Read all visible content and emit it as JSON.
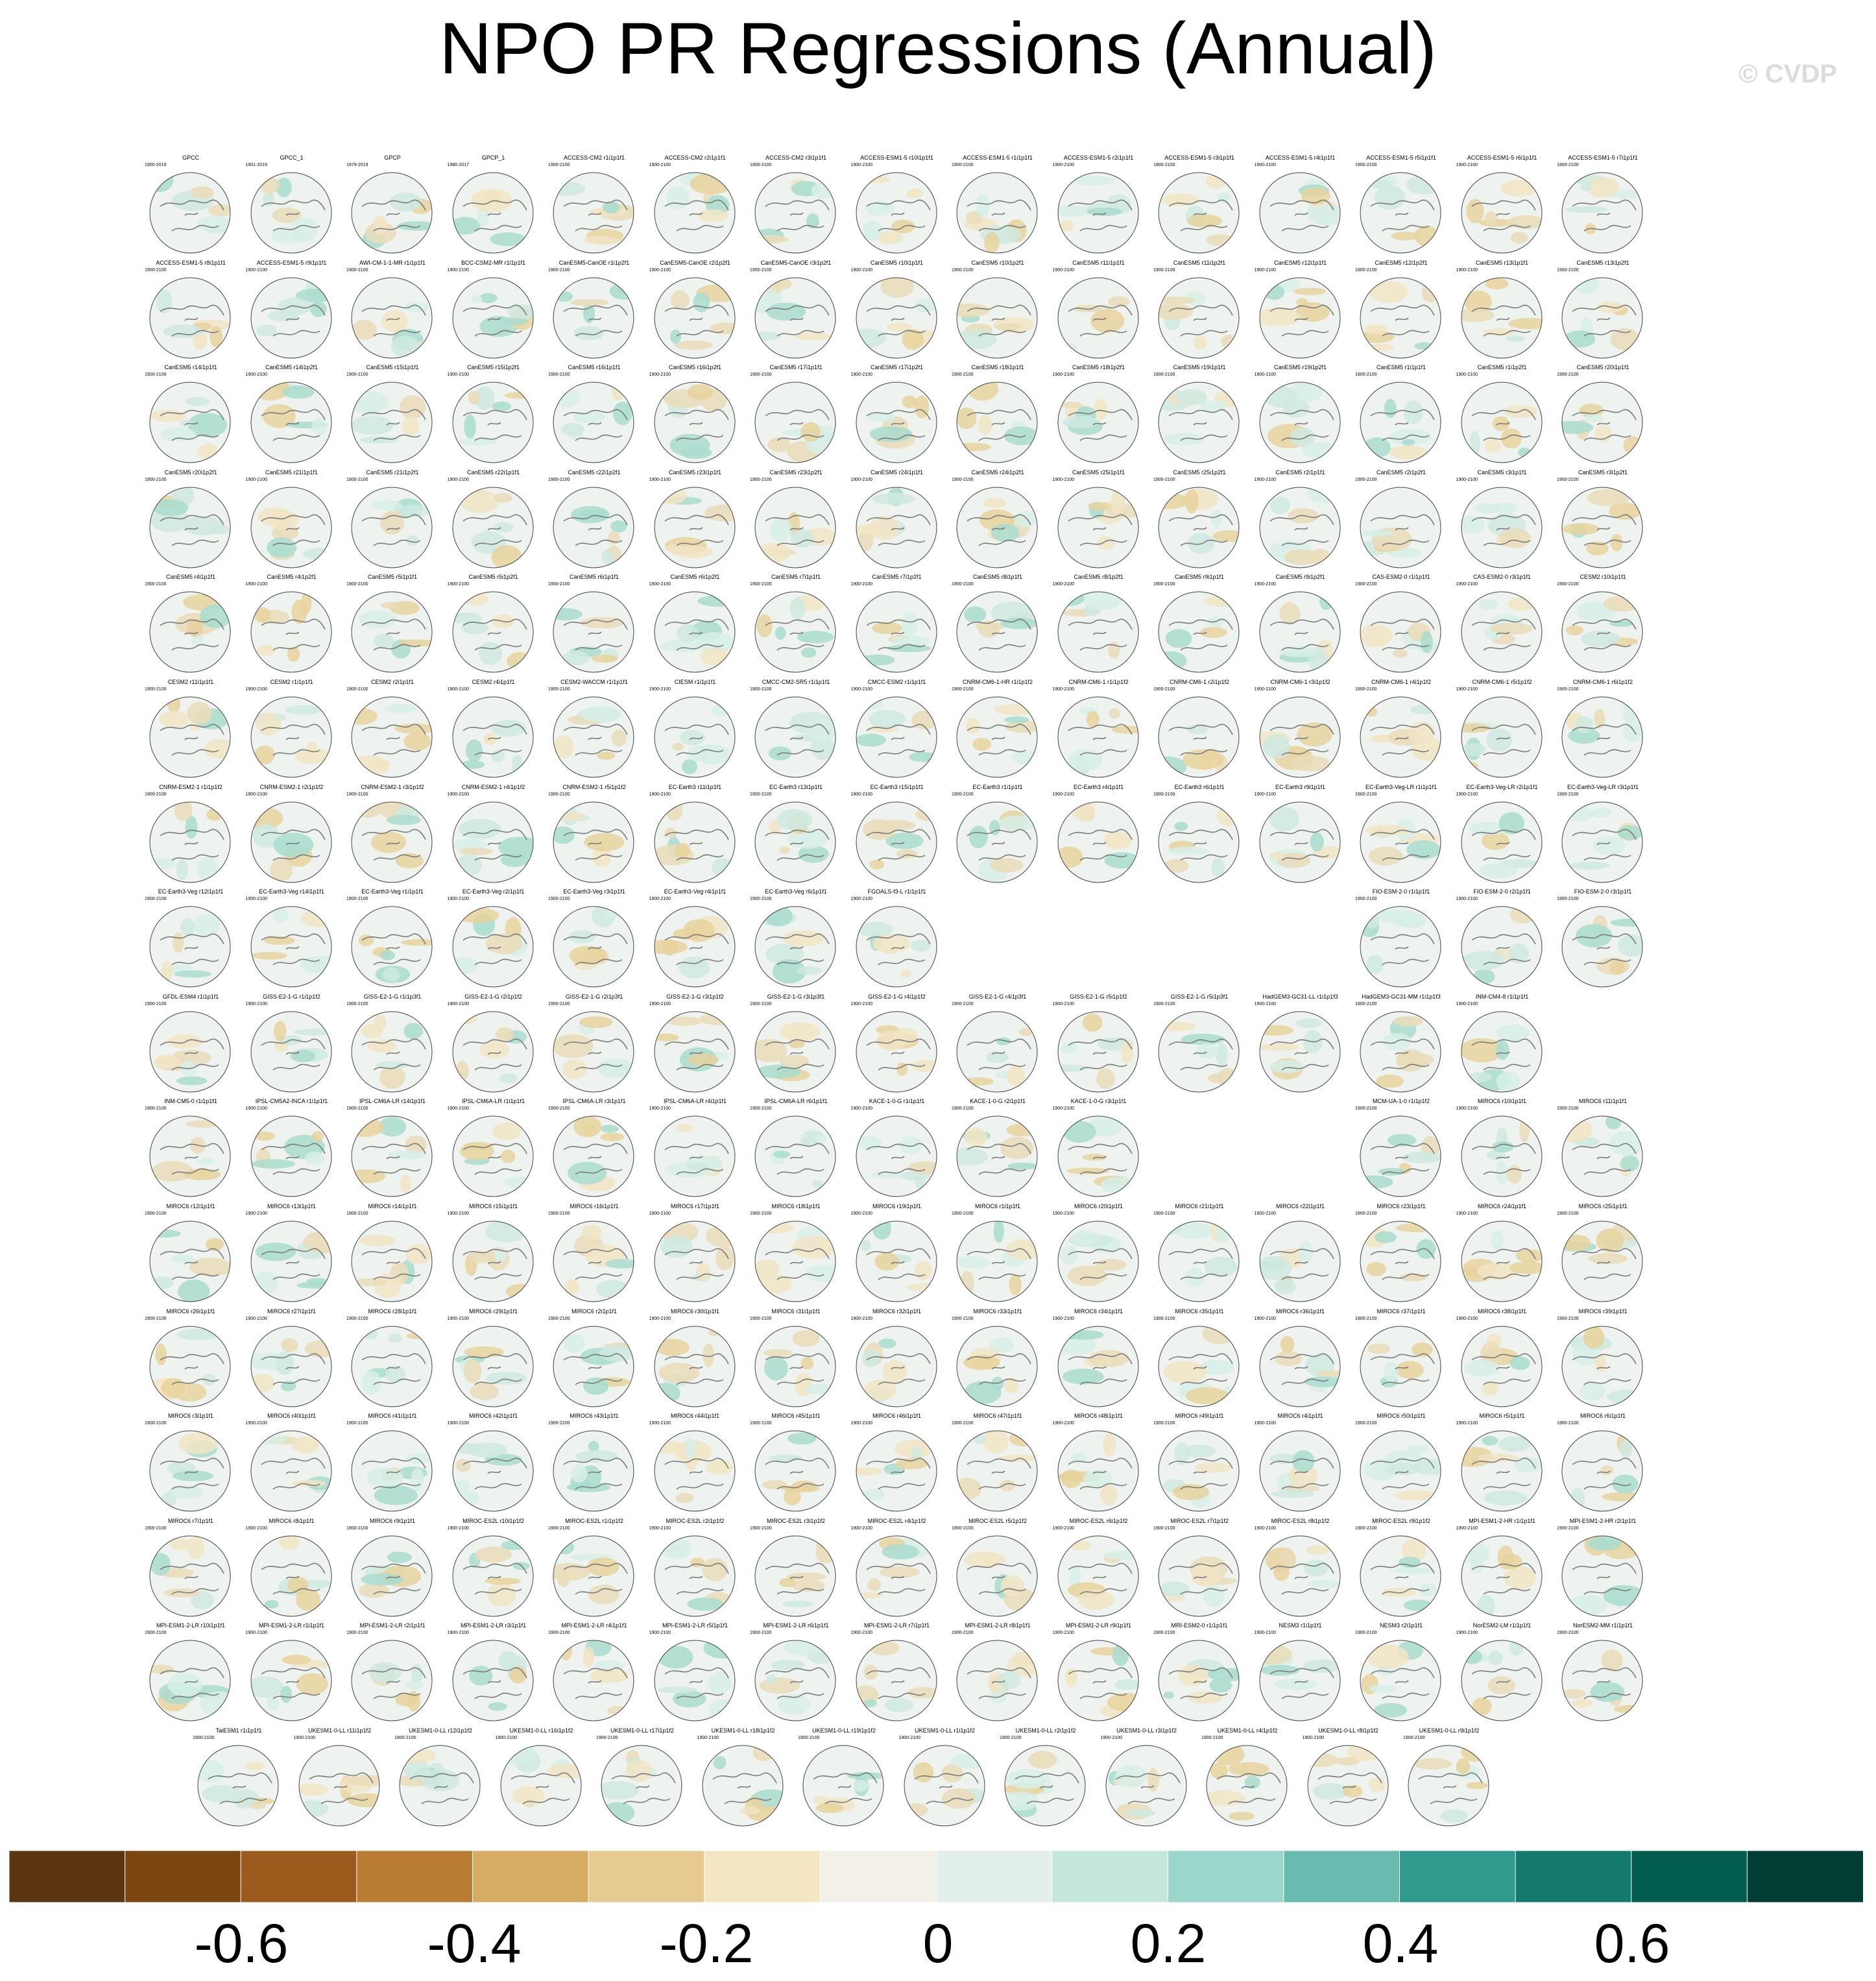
{
  "header": {
    "title": "NPO PR Regressions (Annual)",
    "copyright": "© CVDP"
  },
  "colorbar": {
    "colors": [
      "#5a3510",
      "#7c4612",
      "#9c5b1d",
      "#ba7c33",
      "#d4ac64",
      "#e6ca92",
      "#f4e6c3",
      "#f3f0e9",
      "#e2efec",
      "#c5e7de",
      "#9ad6c9",
      "#68bbae",
      "#309a8f",
      "#137a6d",
      "#035d4f",
      "#013d33"
    ],
    "labels": [
      "-0.6",
      "-0.4",
      "-0.2",
      "0",
      "0.2",
      "0.4",
      "0.6"
    ]
  },
  "panels": {
    "rows": [
      [
        [
          "GPCC",
          "1900-2019"
        ],
        [
          "GPCC_1",
          "1901-2019"
        ],
        [
          "GPCP",
          "1979-2019"
        ],
        [
          "GPCP_1",
          "1980-2017"
        ],
        [
          "ACCESS-CM2 r1i1p1f1",
          "1900-2100"
        ],
        [
          "ACCESS-CM2 r2i1p1f1",
          "1900-2100"
        ],
        [
          "ACCESS-CM2 r3i1p1f1",
          "1900-2100"
        ],
        [
          "ACCESS-ESM1-5 r10i1p1f1",
          "1900-2100"
        ],
        [
          "ACCESS-ESM1-5 r1i1p1f1",
          "1900-2100"
        ],
        [
          "ACCESS-ESM1-5 r2i1p1f1",
          "1900-2100"
        ],
        [
          "ACCESS-ESM1-5 r3i1p1f1",
          "1900-2100"
        ],
        [
          "ACCESS-ESM1-5 r4i1p1f1",
          "1900-2100"
        ],
        [
          "ACCESS-ESM1-5 r5i1p1f1",
          "1900-2100"
        ],
        [
          "ACCESS-ESM1-5 r6i1p1f1",
          "1900-2100"
        ],
        [
          "ACCESS-ESM1-5 r7i1p1f1",
          "1900-2100"
        ]
      ],
      [
        [
          "ACCESS-ESM1-5 r8i1p1f1",
          "1900-2100"
        ],
        [
          "ACCESS-ESM1-5 r9i1p1f1",
          "1900-2100"
        ],
        [
          "AWI-CM-1-1-MR r1i1p1f1",
          "1900-2100"
        ],
        [
          "BCC-CSM2-MR r1i1p1f1",
          "1900-2100"
        ],
        [
          "CanESM5-CanOE r1i1p2f1",
          "1900-2100"
        ],
        [
          "CanESM5-CanOE r2i1p2f1",
          "1900-2100"
        ],
        [
          "CanESM5-CanOE r3i1p2f1",
          "1900-2100"
        ],
        [
          "CanESM5 r10i1p1f1",
          "1900-2100"
        ],
        [
          "CanESM5 r10i1p2f1",
          "1900-2100"
        ],
        [
          "CanESM5 r11i1p1f1",
          "1900-2100"
        ],
        [
          "CanESM5 r11i1p2f1",
          "1900-2100"
        ],
        [
          "CanESM5 r12i1p1f1",
          "1900-2100"
        ],
        [
          "CanESM5 r12i1p2f1",
          "1900-2100"
        ],
        [
          "CanESM5 r13i1p1f1",
          "1900-2100"
        ],
        [
          "CanESM5 r13i1p2f1",
          "1900-2100"
        ]
      ],
      [
        [
          "CanESM5 r14i1p1f1",
          "1900-2100"
        ],
        [
          "CanESM5 r14i1p2f1",
          "1900-2100"
        ],
        [
          "CanESM5 r15i1p1f1",
          "1900-2100"
        ],
        [
          "CanESM5 r15i1p2f1",
          "1900-2100"
        ],
        [
          "CanESM5 r16i1p1f1",
          "1900-2100"
        ],
        [
          "CanESM5 r16i1p2f1",
          "1900-2100"
        ],
        [
          "CanESM5 r17i1p1f1",
          "1900-2100"
        ],
        [
          "CanESM5 r17i1p2f1",
          "1900-2100"
        ],
        [
          "CanESM5 r18i1p1f1",
          "1900-2100"
        ],
        [
          "CanESM5 r18i1p2f1",
          "1900-2100"
        ],
        [
          "CanESM5 r19i1p1f1",
          "1900-2100"
        ],
        [
          "CanESM5 r19i1p2f1",
          "1900-2100"
        ],
        [
          "CanESM5 r1i1p1f1",
          "1900-2100"
        ],
        [
          "CanESM5 r1i1p2f1",
          "1900-2100"
        ],
        [
          "CanESM5 r20i1p1f1",
          "1900-2100"
        ]
      ],
      [
        [
          "CanESM5 r20i1p2f1",
          "1900-2100"
        ],
        [
          "CanESM5 r21i1p1f1",
          "1900-2100"
        ],
        [
          "CanESM5 r21i1p2f1",
          "1900-2100"
        ],
        [
          "CanESM5 r22i1p1f1",
          "1900-2100"
        ],
        [
          "CanESM5 r22i1p2f1",
          "1900-2100"
        ],
        [
          "CanESM5 r23i1p1f1",
          "1900-2100"
        ],
        [
          "CanESM5 r23i1p2f1",
          "1900-2100"
        ],
        [
          "CanESM5 r24i1p1f1",
          "1900-2100"
        ],
        [
          "CanESM5 r24i1p2f1",
          "1900-2100"
        ],
        [
          "CanESM5 r25i1p1f1",
          "1900-2100"
        ],
        [
          "CanESM5 r25i1p2f1",
          "1900-2100"
        ],
        [
          "CanESM5 r2i1p1f1",
          "1900-2100"
        ],
        [
          "CanESM5 r2i1p2f1",
          "1900-2100"
        ],
        [
          "CanESM5 r3i1p1f1",
          "1900-2100"
        ],
        [
          "CanESM5 r3i1p2f1",
          "1900-2100"
        ]
      ],
      [
        [
          "CanESM5 r4i1p1f1",
          "1900-2100"
        ],
        [
          "CanESM5 r4i1p2f1",
          "1900-2100"
        ],
        [
          "CanESM5 r5i1p1f1",
          "1900-2100"
        ],
        [
          "CanESM5 r5i1p2f1",
          "1900-2100"
        ],
        [
          "CanESM5 r6i1p1f1",
          "1900-2100"
        ],
        [
          "CanESM5 r6i1p2f1",
          "1900-2100"
        ],
        [
          "CanESM5 r7i1p1f1",
          "1900-2100"
        ],
        [
          "CanESM5 r7i1p2f1",
          "1900-2100"
        ],
        [
          "CanESM5 r8i1p1f1",
          "1900-2100"
        ],
        [
          "CanESM5 r8i1p2f1",
          "1900-2100"
        ],
        [
          "CanESM5 r9i1p1f1",
          "1900-2100"
        ],
        [
          "CanESM5 r9i1p2f1",
          "1900-2100"
        ],
        [
          "CAS-ESM2-0 r1i1p1f1",
          "1900-2100"
        ],
        [
          "CAS-ESM2-0 r3i1p1f1",
          "1900-2100"
        ],
        [
          "CESM2 r10i1p1f1",
          "1900-2100"
        ]
      ],
      [
        [
          "CESM2 r11i1p1f1",
          "1900-2100"
        ],
        [
          "CESM2 r1i1p1f1",
          "1900-2100"
        ],
        [
          "CESM2 r2i1p1f1",
          "1900-2100"
        ],
        [
          "CESM2 r4i1p1f1",
          "1900-2100"
        ],
        [
          "CESM2-WACCM r1i1p1f1",
          "1900-2100"
        ],
        [
          "CIESM r1i1p1f1",
          "1900-2100"
        ],
        [
          "CMCC-CM2-SR5 r1i1p1f1",
          "1900-2100"
        ],
        [
          "CMCC-ESM2 r1i1p1f1",
          "1900-2100"
        ],
        [
          "CNRM-CM6-1-HR r1i1p1f2",
          "1900-2100"
        ],
        [
          "CNRM-CM6-1 r1i1p1f2",
          "1900-2100"
        ],
        [
          "CNRM-CM6-1 r2i1p1f2",
          "1900-2100"
        ],
        [
          "CNRM-CM6-1 r3i1p1f2",
          "1900-2100"
        ],
        [
          "CNRM-CM6-1 r4i1p1f2",
          "1900-2100"
        ],
        [
          "CNRM-CM6-1 r5i1p1f2",
          "1900-2100"
        ],
        [
          "CNRM-CM6-1 r6i1p1f2",
          "1900-2100"
        ]
      ],
      [
        [
          "CNRM-ESM2-1 r1i1p1f2",
          "1900-2100"
        ],
        [
          "CNRM-ESM2-1 r2i1p1f2",
          "1900-2100"
        ],
        [
          "CNRM-ESM2-1 r3i1p1f2",
          "1900-2100"
        ],
        [
          "CNRM-ESM2-1 r4i1p1f2",
          "1900-2100"
        ],
        [
          "CNRM-ESM2-1 r5i1p1f2",
          "1900-2100"
        ],
        [
          "EC-Earth3 r11i1p1f1",
          "1900-2100"
        ],
        [
          "EC-Earth3 r13i1p1f1",
          "1900-2100"
        ],
        [
          "EC-Earth3 r15i1p1f1",
          "1900-2100"
        ],
        [
          "EC-Earth3 r1i1p1f1",
          "1900-2100"
        ],
        [
          "EC-Earth3 r4i1p1f1",
          "1900-2100"
        ],
        [
          "EC-Earth3 r6i1p1f1",
          "1900-2100"
        ],
        [
          "EC-Earth3 r9i1p1f1",
          "1900-2100"
        ],
        [
          "EC-Earth3-Veg-LR r1i1p1f1",
          "1900-2100"
        ],
        [
          "EC-Earth3-Veg-LR r2i1p1f1",
          "1900-2100"
        ],
        [
          "EC-Earth3-Veg-LR r3i1p1f1",
          "1900-2100"
        ]
      ],
      [
        [
          "EC-Earth3-Veg r12i1p1f1",
          "1900-2100"
        ],
        [
          "EC-Earth3-Veg r14i1p1f1",
          "1900-2100"
        ],
        [
          "EC-Earth3-Veg r1i1p1f1",
          "1900-2100"
        ],
        [
          "EC-Earth3-Veg r2i1p1f1",
          "1900-2100"
        ],
        [
          "EC-Earth3-Veg r3i1p1f1",
          "1900-2100"
        ],
        [
          "EC-Earth3-Veg r4i1p1f1",
          "1900-2100"
        ],
        [
          "EC-Earth3-Veg r6i1p1f1",
          "1900-2100"
        ],
        [
          "FGOALS-f3-L r1i1p1f1",
          "1900-2100"
        ],
        null,
        null,
        null,
        null,
        [
          "FIO-ESM-2-0 r1i1p1f1",
          "1900-2100"
        ],
        [
          "FIO-ESM-2-0 r2i1p1f1",
          "1900-2100"
        ],
        [
          "FIO-ESM-2-0 r3i1p1f1",
          "1900-2100"
        ]
      ],
      [
        [
          "GFDL-ESM4 r1i1p1f1",
          "1900-2100"
        ],
        [
          "GISS-E2-1-G r1i1p1f2",
          "1900-2100"
        ],
        [
          "GISS-E2-1-G r1i1p3f1",
          "1900-2100"
        ],
        [
          "GISS-E2-1-G r2i1p1f2",
          "1900-2100"
        ],
        [
          "GISS-E2-1-G r2i1p3f1",
          "1900-2100"
        ],
        [
          "GISS-E2-1-G r3i1p1f2",
          "1900-2100"
        ],
        [
          "GISS-E2-1-G r3i1p3f1",
          "1900-2100"
        ],
        [
          "GISS-E2-1-G r4i1p1f2",
          "1900-2100"
        ],
        [
          "GISS-E2-1-G r4i1p3f1",
          "1900-2100"
        ],
        [
          "GISS-E2-1-G r5i1p1f2",
          "1900-2100"
        ],
        [
          "GISS-E2-1-G r5i1p3f1",
          "1900-2100"
        ],
        [
          "HadGEM3-GC31-LL r1i1p1f3",
          "1900-2100"
        ],
        [
          "HadGEM3-GC31-MM r1i1p1f3",
          "1900-2100"
        ],
        [
          "INM-CM4-8 r1i1p1f1",
          "1900-2100"
        ],
        null
      ],
      [
        [
          "INM-CM5-0 r1i1p1f1",
          "1900-2100"
        ],
        [
          "IPSL-CM5A2-INCA r1i1p1f1",
          "1900-2100"
        ],
        [
          "IPSL-CM6A-LR r14i1p1f1",
          "1900-2100"
        ],
        [
          "IPSL-CM6A-LR r1i1p1f1",
          "1900-2100"
        ],
        [
          "IPSL-CM6A-LR r3i1p1f1",
          "1900-2100"
        ],
        [
          "IPSL-CM6A-LR r4i1p1f1",
          "1900-2100"
        ],
        [
          "IPSL-CM6A-LR r6i1p1f1",
          "1900-2100"
        ],
        [
          "KACE-1-0-G r1i1p1f1",
          "1900-2100"
        ],
        [
          "KACE-1-0-G r2i1p1f1",
          "1900-2100"
        ],
        [
          "KACE-1-0-G r3i1p1f1",
          "1900-2100"
        ],
        null,
        null,
        [
          "MCM-UA-1-0 r1i1p1f2",
          "1900-2100"
        ],
        [
          "MIROC6 r10i1p1f1",
          "1900-2100"
        ],
        [
          "MIROC6 r11i1p1f1",
          "1900-2100"
        ]
      ],
      [
        [
          "MIROC6 r12i1p1f1",
          "1900-2100"
        ],
        [
          "MIROC6 r13i1p1f1",
          "1900-2100"
        ],
        [
          "MIROC6 r14i1p1f1",
          "1900-2100"
        ],
        [
          "MIROC6 r15i1p1f1",
          "1900-2100"
        ],
        [
          "MIROC6 r16i1p1f1",
          "1900-2100"
        ],
        [
          "MIROC6 r17i1p1f1",
          "1900-2100"
        ],
        [
          "MIROC6 r18i1p1f1",
          "1900-2100"
        ],
        [
          "MIROC6 r19i1p1f1",
          "1900-2100"
        ],
        [
          "MIROC6 r1i1p1f1",
          "1900-2100"
        ],
        [
          "MIROC6 r20i1p1f1",
          "1900-2100"
        ],
        [
          "MIROC6 r21i1p1f1",
          "1900-2100"
        ],
        [
          "MIROC6 r22i1p1f1",
          "1900-2100"
        ],
        [
          "MIROC6 r23i1p1f1",
          "1900-2100"
        ],
        [
          "MIROC6 r24i1p1f1",
          "1900-2100"
        ],
        [
          "MIROC6 r25i1p1f1",
          "1900-2100"
        ]
      ],
      [
        [
          "MIROC6 r26i1p1f1",
          "1900-2100"
        ],
        [
          "MIROC6 r27i1p1f1",
          "1900-2100"
        ],
        [
          "MIROC6 r28i1p1f1",
          "1900-2100"
        ],
        [
          "MIROC6 r29i1p1f1",
          "1900-2100"
        ],
        [
          "MIROC6 r2i1p1f1",
          "1900-2100"
        ],
        [
          "MIROC6 r30i1p1f1",
          "1900-2100"
        ],
        [
          "MIROC6 r31i1p1f1",
          "1900-2100"
        ],
        [
          "MIROC6 r32i1p1f1",
          "1900-2100"
        ],
        [
          "MIROC6 r33i1p1f1",
          "1900-2100"
        ],
        [
          "MIROC6 r34i1p1f1",
          "1900-2100"
        ],
        [
          "MIROC6 r35i1p1f1",
          "1900-2100"
        ],
        [
          "MIROC6 r36i1p1f1",
          "1900-2100"
        ],
        [
          "MIROC6 r37i1p1f1",
          "1900-2100"
        ],
        [
          "MIROC6 r38i1p1f1",
          "1900-2100"
        ],
        [
          "MIROC6 r39i1p1f1",
          "1900-2100"
        ]
      ],
      [
        [
          "MIROC6 r3i1p1f1",
          "1900-2100"
        ],
        [
          "MIROC6 r40i1p1f1",
          "1900-2100"
        ],
        [
          "MIROC6 r41i1p1f1",
          "1900-2100"
        ],
        [
          "MIROC6 r42i1p1f1",
          "1900-2100"
        ],
        [
          "MIROC6 r43i1p1f1",
          "1900-2100"
        ],
        [
          "MIROC6 r44i1p1f1",
          "1900-2100"
        ],
        [
          "MIROC6 r45i1p1f1",
          "1900-2100"
        ],
        [
          "MIROC6 r46i1p1f1",
          "1900-2100"
        ],
        [
          "MIROC6 r47i1p1f1",
          "1900-2100"
        ],
        [
          "MIROC6 r48i1p1f1",
          "1900-2100"
        ],
        [
          "MIROC6 r49i1p1f1",
          "1900-2100"
        ],
        [
          "MIROC6 r4i1p1f1",
          "1900-2100"
        ],
        [
          "MIROC6 r50i1p1f1",
          "1900-2100"
        ],
        [
          "MIROC6 r5i1p1f1",
          "1900-2100"
        ],
        [
          "MIROC6 r6i1p1f1",
          "1900-2100"
        ]
      ],
      [
        [
          "MIROC6 r7i1p1f1",
          "1900-2100"
        ],
        [
          "MIROC6 r8i1p1f1",
          "1900-2100"
        ],
        [
          "MIROC6 r9i1p1f1",
          "1900-2100"
        ],
        [
          "MIROC-ES2L r10i1p1f2",
          "1900-2100"
        ],
        [
          "MIROC-ES2L r1i1p1f2",
          "1900-2100"
        ],
        [
          "MIROC-ES2L r2i1p1f2",
          "1900-2100"
        ],
        [
          "MIROC-ES2L r3i1p1f2",
          "1900-2100"
        ],
        [
          "MIROC-ES2L r4i1p1f2",
          "1900-2100"
        ],
        [
          "MIROC-ES2L r5i1p1f2",
          "1900-2100"
        ],
        [
          "MIROC-ES2L r6i1p1f2",
          "1900-2100"
        ],
        [
          "MIROC-ES2L r7i1p1f2",
          "1900-2100"
        ],
        [
          "MIROC-ES2L r8i1p1f2",
          "1900-2100"
        ],
        [
          "MIROC-ES2L r9i1p1f2",
          "1900-2100"
        ],
        [
          "MPI-ESM1-2-HR r1i1p1f1",
          "1900-2100"
        ],
        [
          "MPI-ESM1-2-HR r2i1p1f1",
          "1900-2100"
        ]
      ],
      [
        [
          "MPI-ESM1-2-LR r10i1p1f1",
          "1900-2100"
        ],
        [
          "MPI-ESM1-2-LR r1i1p1f1",
          "1900-2100"
        ],
        [
          "MPI-ESM1-2-LR r2i1p1f1",
          "1900-2100"
        ],
        [
          "MPI-ESM1-2-LR r3i1p1f1",
          "1900-2100"
        ],
        [
          "MPI-ESM1-2-LR r4i1p1f1",
          "1900-2100"
        ],
        [
          "MPI-ESM1-2-LR r5i1p1f1",
          "1900-2100"
        ],
        [
          "MPI-ESM1-2-LR r6i1p1f1",
          "1900-2100"
        ],
        [
          "MPI-ESM1-2-LR r7i1p1f1",
          "1900-2100"
        ],
        [
          "MPI-ESM1-2-LR r8i1p1f1",
          "1900-2100"
        ],
        [
          "MPI-ESM1-2-LR r9i1p1f1",
          "1900-2100"
        ],
        [
          "MRI-ESM2-0 r1i1p1f1",
          "1900-2100"
        ],
        [
          "NESM3 r1i1p1f1",
          "1900-2100"
        ],
        [
          "NESM3 r2i1p1f1",
          "1900-2100"
        ],
        [
          "NorESM2-LM r1i1p1f1",
          "1900-2100"
        ],
        [
          "NorESM2-MM r1i1p1f1",
          "1900-2100"
        ]
      ],
      [
        [
          "TaiESM1 r1i1p1f1",
          "1900-2100"
        ],
        [
          "UKESM1-0-LL r11i1p1f2",
          "1900-2100"
        ],
        [
          "UKESM1-0-LL r12i1p1f2",
          "1900-2100"
        ],
        [
          "UKESM1-0-LL r16i1p1f2",
          "1900-2100"
        ],
        [
          "UKESM1-0-LL r17i1p1f2",
          "1900-2100"
        ],
        [
          "UKESM1-0-LL r18i1p1f2",
          "1900-2100"
        ],
        [
          "UKESM1-0-LL r19i1p1f2",
          "1900-2100"
        ],
        [
          "UKESM1-0-LL r1i1p1f2",
          "1900-2100"
        ],
        [
          "UKESM1-0-LL r2i1p1f2",
          "1900-2100"
        ],
        [
          "UKESM1-0-LL r3i1p1f2",
          "1900-2100"
        ],
        [
          "UKESM1-0-LL r4i1p1f2",
          "1900-2100"
        ],
        [
          "UKESM1-0-LL r8i1p1f2",
          "1900-2100"
        ],
        [
          "UKESM1-0-LL r9i1p1f2",
          "1900-2100"
        ]
      ]
    ]
  }
}
